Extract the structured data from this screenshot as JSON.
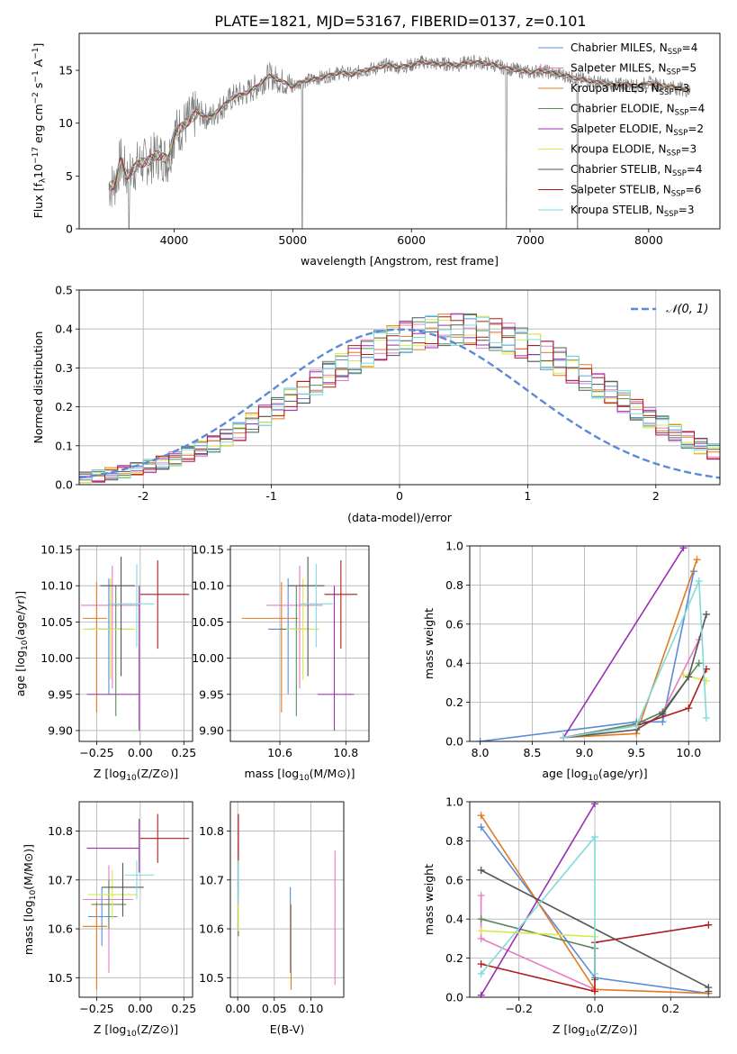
{
  "figure_title": "PLATE=1821, MJD=53167, FIBERID=0137, z=0.101",
  "colors": {
    "Chabrier MILES": "#5b8bd6",
    "Salpeter MILES": "#e87bc4",
    "Kroupa MILES": "#e07b24",
    "Chabrier ELODIE": "#5a8a5a",
    "Salpeter ELODIE": "#9b2fb5",
    "Kroupa ELODIE": "#d9e84a",
    "Chabrier STELIB": "#555555",
    "Salpeter STELIB": "#b01c1c",
    "Kroupa STELIB": "#7fdbdb"
  },
  "chart_data": [
    {
      "id": "spectrum",
      "type": "line",
      "title": "PLATE=1821, MJD=53167, FIBERID=0137, z=0.101",
      "xlabel": "wavelength [Angstrom, rest frame]",
      "ylabel": "Flux [f_λ 10^-17 erg cm^-2 s^-1 A^-1]",
      "xlim": [
        3200,
        8600
      ],
      "ylim": [
        0,
        18.5
      ],
      "xticks": [
        4000,
        5000,
        6000,
        7000,
        8000
      ],
      "yticks": [
        0,
        5,
        10,
        15
      ],
      "grid": false,
      "legend_position": "right",
      "observed": {
        "x": [
          3450,
          3500,
          3550,
          3600,
          3650,
          3700,
          3750,
          3800,
          3850,
          3900,
          3950,
          4000,
          4100,
          4200,
          4300,
          4400,
          4500,
          4600,
          4700,
          4800,
          4900,
          5000,
          5100,
          5200,
          5300,
          5400,
          5500,
          5600,
          5700,
          5800,
          5900,
          6000,
          6100,
          6200,
          6300,
          6400,
          6500,
          6600,
          6700,
          6800,
          6900,
          7000,
          7100,
          7200,
          7300,
          7400,
          7500,
          7600,
          7700,
          7800,
          7900,
          8000,
          8100,
          8200,
          8300,
          8350
        ],
        "y": [
          4.0,
          4.2,
          6.5,
          5.0,
          5.5,
          6.2,
          6.3,
          6.5,
          7.0,
          6.8,
          6.5,
          9.0,
          10.0,
          11.0,
          10.5,
          11.5,
          12.5,
          12.8,
          13.5,
          14.5,
          14.0,
          13.5,
          14.0,
          14.2,
          14.5,
          14.8,
          14.6,
          15.0,
          15.2,
          15.5,
          15.3,
          15.5,
          15.8,
          15.6,
          15.6,
          15.5,
          15.8,
          15.7,
          15.5,
          15.2,
          15.0,
          14.8,
          15.0,
          14.7,
          14.5,
          14.2,
          14.0,
          13.8,
          13.6,
          13.7,
          13.5,
          13.8,
          13.6,
          13.4,
          13.2,
          13.0
        ]
      },
      "series": [
        {
          "name": "Chabrier MILES",
          "nssp": "4"
        },
        {
          "name": "Salpeter MILES",
          "nssp": "5"
        },
        {
          "name": "Kroupa MILES",
          "nssp": "3"
        },
        {
          "name": "Chabrier ELODIE",
          "nssp": "4"
        },
        {
          "name": "Salpeter ELODIE",
          "nssp": "2"
        },
        {
          "name": "Kroupa ELODIE",
          "nssp": "3"
        },
        {
          "name": "Chabrier STELIB",
          "nssp": "4"
        },
        {
          "name": "Salpeter STELIB",
          "nssp": "6"
        },
        {
          "name": "Kroupa STELIB",
          "nssp": "3"
        }
      ]
    },
    {
      "id": "residuals",
      "type": "line",
      "xlabel": "(data-model)/error",
      "ylabel": "Normed distribution",
      "xlim": [
        -2.5,
        2.5
      ],
      "ylim": [
        0,
        0.5
      ],
      "xticks": [
        -2,
        -1,
        0,
        1,
        2
      ],
      "yticks": [
        0.0,
        0.1,
        0.2,
        0.3,
        0.4,
        0.5
      ],
      "grid": true,
      "legend_position": "top-right",
      "legend": "𝒩(0, 1)",
      "bin_edges_start": -2.5,
      "bin_width": 0.1,
      "hist_base": [
        0.018,
        0.022,
        0.028,
        0.033,
        0.04,
        0.048,
        0.057,
        0.066,
        0.079,
        0.092,
        0.104,
        0.122,
        0.136,
        0.159,
        0.178,
        0.196,
        0.219,
        0.239,
        0.262,
        0.283,
        0.302,
        0.321,
        0.338,
        0.358,
        0.369,
        0.38,
        0.388,
        0.393,
        0.399,
        0.399,
        0.398,
        0.392,
        0.386,
        0.376,
        0.365,
        0.35,
        0.333,
        0.317,
        0.296,
        0.276,
        0.254,
        0.236,
        0.214,
        0.193,
        0.172,
        0.152,
        0.133,
        0.115,
        0.1,
        0.085
      ]
    },
    {
      "id": "age_vs_Z",
      "type": "scatter",
      "xlabel": "Z [log10(Z/Z⊙)]",
      "ylabel": "age  [log10(age/yr)]",
      "xlim": [
        -0.35,
        0.3
      ],
      "ylim": [
        9.885,
        10.155
      ],
      "xticks": [
        -0.25,
        0.0,
        0.25
      ],
      "yticks": [
        9.9,
        9.95,
        10.0,
        10.05,
        10.1,
        10.15
      ],
      "grid": true,
      "errorbars": [
        {
          "series": "Chabrier MILES",
          "x": -0.18,
          "xerr": [
            0.12,
            0.08
          ],
          "y": 10.04,
          "yerr": [
            0.09,
            0.07
          ]
        },
        {
          "series": "Salpeter MILES",
          "x": -0.16,
          "xerr": [
            0.18,
            0.16
          ],
          "y": 10.073,
          "yerr": [
            0.115,
            0.055
          ]
        },
        {
          "series": "Kroupa MILES",
          "x": -0.25,
          "xerr": [
            0.08,
            0.06
          ],
          "y": 10.055,
          "yerr": [
            0.13,
            0.05
          ]
        },
        {
          "series": "Chabrier ELODIE",
          "x": -0.14,
          "xerr": [
            0.14,
            0.1
          ],
          "y": 10.04,
          "yerr": [
            0.12,
            0.06
          ]
        },
        {
          "series": "Salpeter ELODIE",
          "x": -0.006,
          "xerr": [
            0.3,
            0.0
          ],
          "y": 9.95,
          "yerr": [
            0.05,
            0.15
          ]
        },
        {
          "series": "Kroupa ELODIE",
          "x": -0.17,
          "xerr": [
            0.16,
            0.14
          ],
          "y": 10.04,
          "yerr": [
            0.07,
            0.07
          ]
        },
        {
          "series": "Chabrier STELIB",
          "x": -0.11,
          "xerr": [
            0.12,
            0.08
          ],
          "y": 10.1,
          "yerr": [
            0.125,
            0.04
          ]
        },
        {
          "series": "Salpeter STELIB",
          "x": 0.1,
          "xerr": [
            0.1,
            0.18
          ],
          "y": 10.088,
          "yerr": [
            0.075,
            0.047
          ]
        },
        {
          "series": "Kroupa STELIB",
          "x": -0.02,
          "xerr": [
            0.16,
            0.1
          ],
          "y": 10.075,
          "yerr": [
            0.06,
            0.055
          ]
        }
      ]
    },
    {
      "id": "age_vs_mass",
      "type": "scatter",
      "xlabel": "mass [log10(M/M⊙)]",
      "ylim": [
        9.885,
        10.155
      ],
      "xlim": [
        10.45,
        10.87
      ],
      "xticks": [
        10.6,
        10.8
      ],
      "yticks": [
        9.9,
        9.95,
        10.0,
        10.05,
        10.1,
        10.15
      ],
      "grid": true,
      "errorbars": [
        {
          "series": "Chabrier MILES",
          "x": 10.625,
          "xerr": [
            0.06,
            0.06
          ],
          "y": 10.04,
          "yerr": [
            0.09,
            0.07
          ]
        },
        {
          "series": "Salpeter MILES",
          "x": 10.66,
          "xerr": [
            0.1,
            0.07
          ],
          "y": 10.073,
          "yerr": [
            0.115,
            0.055
          ]
        },
        {
          "series": "Kroupa MILES",
          "x": 10.605,
          "xerr": [
            0.12,
            0.05
          ],
          "y": 10.055,
          "yerr": [
            0.13,
            0.05
          ]
        },
        {
          "series": "Chabrier ELODIE",
          "x": 10.65,
          "xerr": [
            0.05,
            0.05
          ],
          "y": 10.04,
          "yerr": [
            0.12,
            0.06
          ]
        },
        {
          "series": "Salpeter ELODIE",
          "x": 10.765,
          "xerr": [
            0.05,
            0.06
          ],
          "y": 9.95,
          "yerr": [
            0.05,
            0.15
          ]
        },
        {
          "series": "Kroupa ELODIE",
          "x": 10.67,
          "xerr": [
            0.05,
            0.05
          ],
          "y": 10.04,
          "yerr": [
            0.07,
            0.07
          ]
        },
        {
          "series": "Chabrier STELIB",
          "x": 10.685,
          "xerr": [
            0.06,
            0.05
          ],
          "y": 10.1,
          "yerr": [
            0.125,
            0.04
          ]
        },
        {
          "series": "Salpeter STELIB",
          "x": 10.785,
          "xerr": [
            0.05,
            0.05
          ],
          "y": 10.088,
          "yerr": [
            0.075,
            0.047
          ]
        },
        {
          "series": "Kroupa STELIB",
          "x": 10.71,
          "xerr": [
            0.05,
            0.05
          ],
          "y": 10.075,
          "yerr": [
            0.06,
            0.055
          ]
        }
      ]
    },
    {
      "id": "weight_vs_age",
      "type": "line",
      "xlabel": "age  [log10(age/yr)]",
      "ylabel": "mass weight",
      "xlim": [
        7.9,
        10.3
      ],
      "ylim": [
        0,
        1.0
      ],
      "xticks": [
        8.0,
        8.5,
        9.0,
        9.5,
        10.0
      ],
      "yticks": [
        0.0,
        0.2,
        0.4,
        0.6,
        0.8,
        1.0
      ],
      "grid": true,
      "series": [
        {
          "name": "Chabrier MILES",
          "x": [
            8.0,
            9.5,
            9.75,
            10.05
          ],
          "y": [
            0.0,
            0.1,
            0.1,
            0.87
          ]
        },
        {
          "name": "Salpeter MILES",
          "x": [
            8.8,
            9.5,
            9.75,
            10.1
          ],
          "y": [
            0.02,
            0.09,
            0.15,
            0.52
          ]
        },
        {
          "name": "Kroupa MILES",
          "x": [
            8.8,
            9.5,
            10.08
          ],
          "y": [
            0.02,
            0.04,
            0.93
          ]
        },
        {
          "name": "Chabrier ELODIE",
          "x": [
            8.8,
            9.5,
            9.75,
            10.1
          ],
          "y": [
            0.02,
            0.09,
            0.15,
            0.4
          ]
        },
        {
          "name": "Salpeter ELODIE",
          "x": [
            8.8,
            9.95
          ],
          "y": [
            0.02,
            0.99
          ]
        },
        {
          "name": "Kroupa ELODIE",
          "x": [
            9.95,
            10.17
          ],
          "y": [
            0.34,
            0.31
          ]
        },
        {
          "name": "Chabrier STELIB",
          "x": [
            8.8,
            9.5,
            9.75,
            10.0,
            10.17
          ],
          "y": [
            0.02,
            0.06,
            0.14,
            0.33,
            0.65
          ]
        },
        {
          "name": "Salpeter STELIB",
          "x": [
            8.8,
            9.5,
            10.0,
            10.17
          ],
          "y": [
            0.02,
            0.08,
            0.17,
            0.37
          ]
        },
        {
          "name": "Kroupa STELIB",
          "x": [
            8.8,
            9.5,
            10.1,
            10.17
          ],
          "y": [
            0.02,
            0.08,
            0.82,
            0.12
          ]
        }
      ]
    },
    {
      "id": "mass_vs_Z",
      "type": "scatter",
      "xlabel": "Z [log10(Z/Z⊙)]",
      "ylabel": "mass [log10(M/M⊙)]",
      "xlim": [
        -0.35,
        0.3
      ],
      "ylim": [
        10.46,
        10.86
      ],
      "xticks": [
        -0.25,
        0.0,
        0.25
      ],
      "yticks": [
        10.5,
        10.6,
        10.7,
        10.8
      ],
      "grid": true,
      "errorbars": [
        {
          "series": "Chabrier MILES",
          "x": -0.22,
          "xerr": [
            0.08,
            0.09
          ],
          "y": 10.625,
          "yerr": [
            0.06,
            0.06
          ]
        },
        {
          "series": "Salpeter MILES",
          "x": -0.18,
          "xerr": [
            0.15,
            0.14
          ],
          "y": 10.66,
          "yerr": [
            0.15,
            0.07
          ]
        },
        {
          "series": "Kroupa MILES",
          "x": -0.25,
          "xerr": [
            0.08,
            0.06
          ],
          "y": 10.605,
          "yerr": [
            0.13,
            0.05
          ]
        },
        {
          "series": "Chabrier ELODIE",
          "x": -0.18,
          "xerr": [
            0.1,
            0.1
          ],
          "y": 10.65,
          "yerr": [
            0.05,
            0.05
          ]
        },
        {
          "series": "Salpeter ELODIE",
          "x": -0.006,
          "xerr": [
            0.3,
            0.0
          ],
          "y": 10.765,
          "yerr": [
            0.05,
            0.06
          ]
        },
        {
          "series": "Kroupa ELODIE",
          "x": -0.16,
          "xerr": [
            0.14,
            0.14
          ],
          "y": 10.67,
          "yerr": [
            0.05,
            0.05
          ]
        },
        {
          "series": "Chabrier STELIB",
          "x": -0.1,
          "xerr": [
            0.12,
            0.12
          ],
          "y": 10.685,
          "yerr": [
            0.06,
            0.05
          ]
        },
        {
          "series": "Salpeter STELIB",
          "x": 0.1,
          "xerr": [
            0.1,
            0.18
          ],
          "y": 10.785,
          "yerr": [
            0.05,
            0.05
          ]
        },
        {
          "series": "Kroupa STELIB",
          "x": -0.02,
          "xerr": [
            0.07,
            0.1
          ],
          "y": 10.71,
          "yerr": [
            0.05,
            0.03
          ]
        }
      ]
    },
    {
      "id": "mass_vs_EBV",
      "type": "scatter",
      "xlabel": "E(B-V)",
      "xlim": [
        -0.01,
        0.145
      ],
      "ylim": [
        10.46,
        10.86
      ],
      "xticks": [
        0.0,
        0.05,
        0.1
      ],
      "yticks": [
        10.5,
        10.6,
        10.7,
        10.8
      ],
      "grid": true,
      "errorbars": [
        {
          "series": "Chabrier MILES",
          "x": 0.072,
          "y": 10.6,
          "yerr": [
            0.09,
            0.085
          ]
        },
        {
          "series": "Salpeter MILES",
          "x": 0.133,
          "y": 10.62,
          "yerr": [
            0.135,
            0.14
          ]
        },
        {
          "series": "Kroupa MILES",
          "x": 0.073,
          "y": 10.56,
          "yerr": [
            0.085,
            0.09
          ]
        },
        {
          "series": "Chabrier ELODIE",
          "x": 0.001,
          "y": 10.61,
          "yerr": [
            0.025,
            0.03
          ]
        },
        {
          "series": "Salpeter ELODIE",
          "x": 0.001,
          "y": 10.765,
          "yerr": [
            0.01,
            0.01
          ]
        },
        {
          "series": "Kroupa ELODIE",
          "x": 0.001,
          "y": 10.63,
          "yerr": [
            0.035,
            0.045
          ]
        },
        {
          "series": "Chabrier STELIB",
          "x": 0.001,
          "y": 10.685,
          "yerr": [
            0.02,
            0.02
          ]
        },
        {
          "series": "Salpeter STELIB",
          "x": 0.001,
          "y": 10.785,
          "yerr": [
            0.06,
            0.05
          ]
        },
        {
          "series": "Kroupa STELIB",
          "x": 0.001,
          "y": 10.7,
          "yerr": [
            0.05,
            0.04
          ]
        }
      ]
    },
    {
      "id": "weight_vs_Z",
      "type": "line",
      "xlabel": "Z [log10(Z/Z⊙)]",
      "ylabel": "mass weight",
      "xlim": [
        -0.33,
        0.33
      ],
      "ylim": [
        0,
        1.0
      ],
      "xticks": [
        -0.2,
        0.0,
        0.2
      ],
      "yticks": [
        0.0,
        0.2,
        0.4,
        0.6,
        0.8,
        1.0
      ],
      "grid": true,
      "series": [
        {
          "name": "Chabrier MILES",
          "x": [
            -0.3,
            0.0,
            0.3
          ],
          "y": [
            0.87,
            0.1,
            0.02
          ]
        },
        {
          "name": "Salpeter MILES",
          "x": [
            -0.3,
            -0.3,
            0.0
          ],
          "y": [
            0.52,
            0.3,
            0.04
          ]
        },
        {
          "name": "Kroupa MILES",
          "x": [
            -0.3,
            0.0,
            0.3
          ],
          "y": [
            0.93,
            0.04,
            0.02
          ]
        },
        {
          "name": "Chabrier ELODIE",
          "x": [
            -0.3,
            0.0,
            0.0
          ],
          "y": [
            0.4,
            0.25,
            0.09
          ]
        },
        {
          "name": "Salpeter ELODIE",
          "x": [
            -0.3,
            0.0
          ],
          "y": [
            0.01,
            0.99
          ]
        },
        {
          "name": "Kroupa ELODIE",
          "x": [
            -0.3,
            0.0
          ],
          "y": [
            0.34,
            0.31
          ]
        },
        {
          "name": "Chabrier STELIB",
          "x": [
            -0.3,
            0.3,
            0.3
          ],
          "y": [
            0.65,
            0.05,
            0.03
          ]
        },
        {
          "name": "Salpeter STELIB",
          "x": [
            -0.3,
            0.0,
            0.0,
            0.3
          ],
          "y": [
            0.17,
            0.03,
            0.28,
            0.37
          ]
        },
        {
          "name": "Kroupa STELIB",
          "x": [
            -0.3,
            0.0,
            0.0
          ],
          "y": [
            0.12,
            0.82,
            0.12
          ]
        }
      ]
    }
  ]
}
